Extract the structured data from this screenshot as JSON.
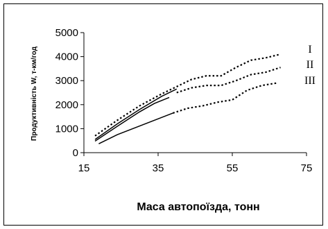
{
  "chart_data": {
    "type": "line",
    "xlabel": "Маса автопоїзда, тонн",
    "ylabel": "Продуктивність W, т-км/год",
    "xlim": [
      15,
      75
    ],
    "ylim": [
      0,
      5000
    ],
    "xticks": [
      "15",
      "35",
      "55",
      "75"
    ],
    "yticks": [
      "0",
      "1000",
      "2000",
      "3000",
      "4000",
      "5000"
    ],
    "grid": false,
    "legend": "right",
    "series": [
      {
        "name": "I",
        "solid": {
          "x": [
            18,
            24,
            30,
            36,
            40
          ],
          "y": [
            550,
            1200,
            1800,
            2350,
            2650
          ]
        },
        "dotted": {
          "x": [
            18,
            24,
            30,
            36,
            40,
            44,
            48,
            52,
            56,
            60,
            64,
            68
          ],
          "y": [
            700,
            1350,
            1950,
            2450,
            2750,
            3050,
            3200,
            3200,
            3550,
            3850,
            3950,
            4100
          ]
        }
      },
      {
        "name": "II",
        "solid": {
          "x": [
            18,
            24,
            30,
            34,
            38
          ],
          "y": [
            480,
            1100,
            1700,
            2050,
            2300
          ]
        },
        "dotted": {
          "x": [
            40,
            44,
            48,
            52,
            56,
            60,
            64,
            68
          ],
          "y": [
            2500,
            2700,
            2800,
            2800,
            3000,
            3250,
            3350,
            3550
          ]
        }
      },
      {
        "name": "III",
        "solid": {
          "x": [
            19,
            24,
            29,
            34,
            39
          ],
          "y": [
            370,
            750,
            1050,
            1350,
            1650
          ]
        },
        "dotted": {
          "x": [
            39,
            43,
            47,
            51,
            55,
            59,
            63,
            67
          ],
          "y": [
            1650,
            1850,
            1950,
            2100,
            2200,
            2600,
            2800,
            2900
          ]
        }
      }
    ]
  }
}
